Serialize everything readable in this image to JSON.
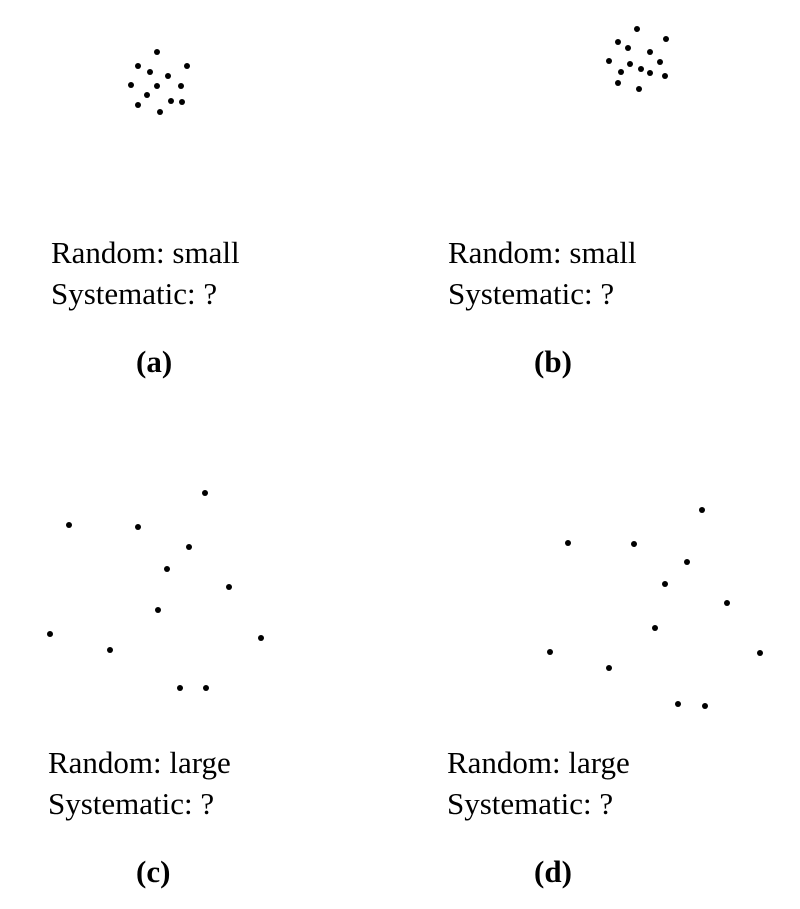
{
  "panels": [
    {
      "id": "a",
      "random_label": "Random: small",
      "systematic_label": "Systematic: ?",
      "caption": "(a)"
    },
    {
      "id": "b",
      "random_label": "Random: small",
      "systematic_label": "Systematic: ?",
      "caption": "(b)"
    },
    {
      "id": "c",
      "random_label": "Random: large",
      "systematic_label": "Systematic: ?",
      "caption": "(c)"
    },
    {
      "id": "d",
      "random_label": "Random: large",
      "systematic_label": "Systematic: ?",
      "caption": "(d)"
    }
  ],
  "colors": {
    "dot": "#000000",
    "background": "#ffffff"
  }
}
